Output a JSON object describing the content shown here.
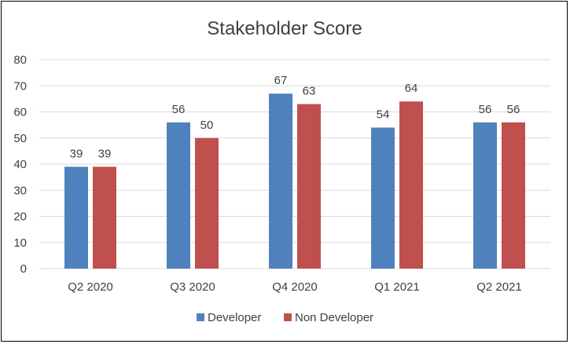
{
  "chart_data": {
    "type": "bar",
    "title": "Stakeholder Score",
    "categories": [
      "Q2 2020",
      "Q3 2020",
      "Q4 2020",
      "Q1 2021",
      "Q2 2021"
    ],
    "series": [
      {
        "name": "Developer",
        "values": [
          39,
          56,
          67,
          54,
          56
        ],
        "color": "#4F81BD"
      },
      {
        "name": "Non Developer",
        "values": [
          39,
          50,
          63,
          64,
          56
        ],
        "color": "#C0504D"
      }
    ],
    "ylim": [
      0,
      80
    ],
    "yticks": [
      0,
      10,
      20,
      30,
      40,
      50,
      60,
      70,
      80
    ],
    "grid": true,
    "legend": "bottom",
    "colors": {
      "grid": "#D9D9D9",
      "text": "#404040"
    }
  }
}
